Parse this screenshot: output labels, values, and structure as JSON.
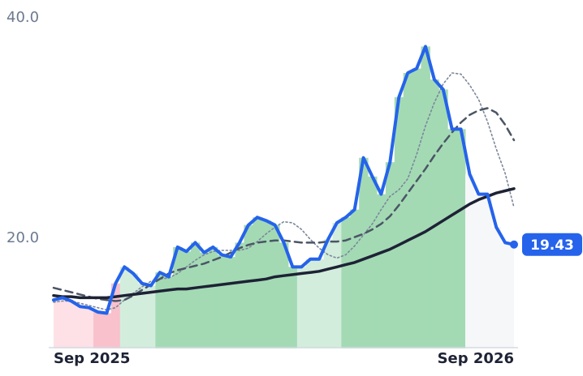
{
  "chart_data": {
    "type": "line",
    "categories": [
      "Sep 2025",
      null,
      null,
      null,
      null,
      null,
      null,
      null,
      null,
      null,
      null,
      null,
      null,
      null,
      null,
      null,
      null,
      null,
      null,
      null,
      null,
      null,
      null,
      null,
      null,
      null,
      null,
      null,
      null,
      null,
      null,
      null,
      null,
      null,
      null,
      null,
      null,
      null,
      null,
      null,
      null,
      null,
      null,
      null,
      null,
      null,
      null,
      null,
      null,
      null,
      null,
      null,
      "Sep 2026"
    ],
    "series": [
      {
        "color": "#2563eb",
        "width": 4,
        "dash": "solid",
        "fill_regimes": true,
        "values": [
          14.4,
          14.6,
          14.3,
          13.8,
          13.7,
          13.3,
          13.2,
          15.9,
          17.4,
          16.8,
          15.9,
          15.7,
          16.9,
          16.5,
          19.2,
          18.8,
          19.6,
          18.7,
          19.2,
          18.5,
          18.3,
          19.6,
          21.2,
          21.9,
          21.6,
          21.2,
          19.6,
          17.4,
          17.4,
          18.1,
          18.1,
          19.9,
          21.4,
          21.9,
          22.6,
          27.3,
          25.6,
          24.0,
          26.9,
          32.8,
          35.0,
          35.4,
          37.4,
          34.4,
          33.5,
          29.9,
          29.9,
          25.8,
          24.0,
          24.0,
          21.0,
          19.6,
          19.43
        ]
      },
      {
        "color": "#7b8799",
        "width": 1.6,
        "dash": "dotted",
        "values": [
          14.2,
          14.3,
          14.3,
          14.1,
          13.9,
          13.7,
          13.5,
          13.7,
          14.4,
          15.0,
          15.6,
          16.1,
          16.3,
          16.4,
          16.8,
          17.4,
          18.0,
          18.5,
          18.8,
          18.9,
          18.9,
          18.9,
          19.1,
          19.7,
          20.4,
          21.0,
          21.5,
          21.4,
          20.8,
          19.9,
          19.1,
          18.5,
          18.2,
          18.5,
          19.3,
          20.3,
          21.3,
          22.6,
          23.8,
          24.4,
          25.4,
          27.6,
          30.2,
          32.3,
          34.0,
          35.0,
          34.9,
          33.9,
          32.6,
          30.6,
          28.1,
          25.9,
          22.8
        ]
      },
      {
        "color": "#4b5565",
        "width": 2.5,
        "dash": "dashed",
        "values": [
          15.5,
          15.3,
          15.1,
          14.9,
          14.7,
          14.5,
          14.4,
          14.3,
          14.4,
          14.8,
          15.3,
          15.8,
          16.3,
          16.8,
          17.1,
          17.3,
          17.5,
          17.7,
          18.0,
          18.3,
          18.7,
          19.1,
          19.4,
          19.6,
          19.7,
          19.8,
          19.8,
          19.7,
          19.6,
          19.6,
          19.6,
          19.7,
          19.7,
          19.8,
          20.1,
          20.4,
          20.8,
          21.3,
          22.0,
          23.0,
          24.1,
          25.2,
          26.3,
          27.5,
          28.6,
          29.6,
          30.5,
          31.2,
          31.6,
          31.8,
          31.4,
          30.3,
          28.9
        ]
      },
      {
        "color": "#1e2235",
        "width": 3.5,
        "dash": "solid",
        "values": [
          14.8,
          14.7,
          14.7,
          14.6,
          14.6,
          14.6,
          14.6,
          14.7,
          14.8,
          14.9,
          15.0,
          15.1,
          15.2,
          15.3,
          15.4,
          15.4,
          15.5,
          15.6,
          15.7,
          15.8,
          15.9,
          16.0,
          16.1,
          16.2,
          16.3,
          16.5,
          16.6,
          16.7,
          16.8,
          16.9,
          17.0,
          17.2,
          17.4,
          17.6,
          17.8,
          18.1,
          18.4,
          18.7,
          19.0,
          19.4,
          19.8,
          20.2,
          20.6,
          21.1,
          21.6,
          22.1,
          22.6,
          23.1,
          23.5,
          23.8,
          24.1,
          24.3,
          24.5
        ]
      }
    ],
    "regime_colors": [
      "#fde1e7",
      "#fde1e7",
      "#fde1e7",
      "#fde1e7",
      "#fde1e7",
      "#f8c1cc",
      "#f8c1cc",
      "#f8c1cc",
      "#d3eddc",
      "#d3eddc",
      "#d3eddc",
      "#d3eddc",
      "#a3dab4",
      "#a3dab4",
      "#a3dab4",
      "#a3dab4",
      "#a3dab4",
      "#a3dab4",
      "#a3dab4",
      "#a3dab4",
      "#a3dab4",
      "#a3dab4",
      "#a3dab4",
      "#a3dab4",
      "#a3dab4",
      "#a3dab4",
      "#a3dab4",
      "#a3dab4",
      "#d3eddc",
      "#d3eddc",
      "#d3eddc",
      "#d3eddc",
      "#d3eddc",
      "#a3dab4",
      "#a3dab4",
      "#a3dab4",
      "#a3dab4",
      "#a3dab4",
      "#a3dab4",
      "#a3dab4",
      "#a3dab4",
      "#a3dab4",
      "#a3dab4",
      "#a3dab4",
      "#a3dab4",
      "#a3dab4",
      "#a3dab4",
      "#f6f7f9",
      "#f6f7f9",
      "#f6f7f9",
      "#f6f7f9",
      "#f6f7f9",
      "#f6f7f9"
    ],
    "ylim": [
      10,
      40
    ],
    "yticks": [
      {
        "value": 40,
        "label": "40.0"
      },
      {
        "value": 20,
        "label": "20.0"
      }
    ],
    "last_value_color": "#2563eb"
  }
}
